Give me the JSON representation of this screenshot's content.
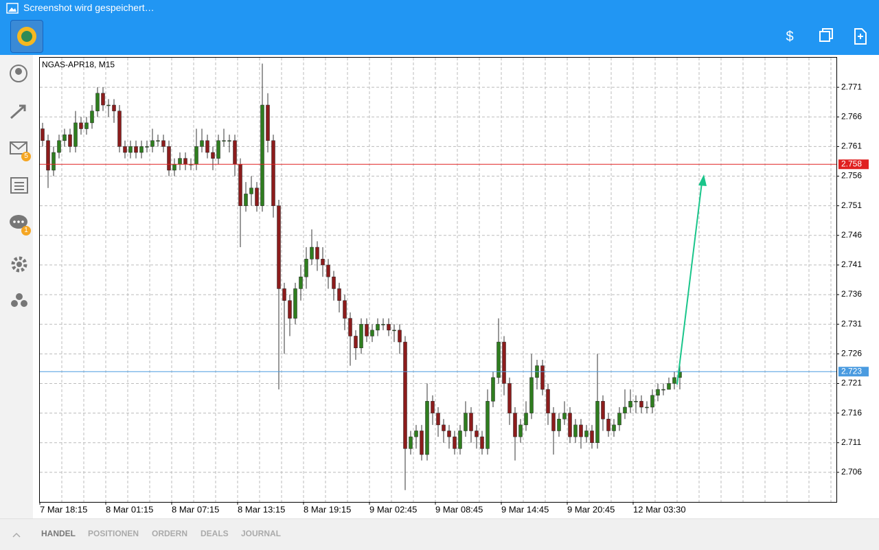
{
  "status_bar": {
    "text": "Screenshot wird gespeichert…"
  },
  "sidebar": {
    "badges": [
      "5",
      "1"
    ]
  },
  "chart_data": {
    "type": "candlestick",
    "title": "NGAS-APR18, M15",
    "categories": [
      "7 Mar 18:15",
      null,
      null,
      null,
      null,
      null,
      null,
      null,
      null,
      null,
      null,
      null,
      "8 Mar 01:15",
      null,
      null,
      null,
      null,
      null,
      null,
      null,
      null,
      null,
      null,
      null,
      "8 Mar 07:15",
      null,
      null,
      null,
      null,
      null,
      null,
      null,
      null,
      null,
      null,
      null,
      "8 Mar 13:15",
      null,
      null,
      null,
      null,
      null,
      null,
      null,
      null,
      null,
      null,
      null,
      "8 Mar 19:15",
      null,
      null,
      null,
      null,
      null,
      null,
      null,
      null,
      null,
      null,
      null,
      "9 Mar 02:45",
      null,
      null,
      null,
      null,
      null,
      null,
      null,
      null,
      null,
      null,
      null,
      "9 Mar 08:45",
      null,
      null,
      null,
      null,
      null,
      null,
      null,
      null,
      null,
      null,
      null,
      "9 Mar 14:45",
      null,
      null,
      null,
      null,
      null,
      null,
      null,
      null,
      null,
      null,
      null,
      "9 Mar 20:45",
      null,
      null,
      null,
      null,
      null,
      null,
      null,
      null,
      null,
      null,
      null,
      "12 Mar 03:30",
      null,
      null,
      null,
      null,
      null,
      null,
      null,
      null
    ],
    "open": [
      2.764,
      2.762,
      2.757,
      2.76,
      2.762,
      2.763,
      2.761,
      2.765,
      2.764,
      2.765,
      2.767,
      2.77,
      2.768,
      2.768,
      2.767,
      2.761,
      2.76,
      2.761,
      2.76,
      2.761,
      2.761,
      2.762,
      2.762,
      2.761,
      2.757,
      2.758,
      2.759,
      2.758,
      2.758,
      2.761,
      2.762,
      2.76,
      2.759,
      2.762,
      2.762,
      2.762,
      2.758,
      2.751,
      2.753,
      2.754,
      2.751,
      2.768,
      2.762,
      2.751,
      2.737,
      2.735,
      2.732,
      2.737,
      2.739,
      2.742,
      2.744,
      2.742,
      2.741,
      2.739,
      2.737,
      2.735,
      2.732,
      2.729,
      2.727,
      2.731,
      2.729,
      2.73,
      2.731,
      2.731,
      2.73,
      2.73,
      2.728,
      2.71,
      2.712,
      2.713,
      2.709,
      2.718,
      2.716,
      2.714,
      2.713,
      2.712,
      2.71,
      2.713,
      2.716,
      2.713,
      2.712,
      2.71,
      2.718,
      2.722,
      2.728,
      2.721,
      2.716,
      2.712,
      2.714,
      2.716,
      2.722,
      2.724,
      2.72,
      2.716,
      2.713,
      2.715,
      2.716,
      2.712,
      2.714,
      2.712,
      2.713,
      2.711,
      2.718,
      2.715,
      2.713,
      2.714,
      2.716,
      2.717,
      2.718,
      2.718,
      2.717,
      2.717,
      2.719,
      2.72,
      2.72,
      2.721,
      2.722
    ],
    "high": [
      2.765,
      2.763,
      2.761,
      2.763,
      2.764,
      2.764,
      2.767,
      2.766,
      2.766,
      2.768,
      2.771,
      2.771,
      2.769,
      2.769,
      2.768,
      2.762,
      2.762,
      2.762,
      2.762,
      2.762,
      2.764,
      2.763,
      2.763,
      2.762,
      2.759,
      2.76,
      2.76,
      2.759,
      2.764,
      2.764,
      2.763,
      2.761,
      2.763,
      2.764,
      2.763,
      2.763,
      2.759,
      2.755,
      2.756,
      2.755,
      2.775,
      2.77,
      2.763,
      2.752,
      2.738,
      2.736,
      2.738,
      2.741,
      2.744,
      2.747,
      2.745,
      2.744,
      2.742,
      2.74,
      2.738,
      2.736,
      2.733,
      2.73,
      2.732,
      2.732,
      2.731,
      2.732,
      2.732,
      2.732,
      2.731,
      2.731,
      2.729,
      2.713,
      2.714,
      2.714,
      2.721,
      2.719,
      2.717,
      2.715,
      2.714,
      2.713,
      2.714,
      2.718,
      2.717,
      2.714,
      2.713,
      2.72,
      2.723,
      2.732,
      2.729,
      2.722,
      2.717,
      2.715,
      2.718,
      2.726,
      2.725,
      2.725,
      2.721,
      2.717,
      2.716,
      2.718,
      2.717,
      2.715,
      2.715,
      2.714,
      2.714,
      2.726,
      2.719,
      2.716,
      2.715,
      2.717,
      2.72,
      2.72,
      2.719,
      2.719,
      2.718,
      2.72,
      2.721,
      2.721,
      2.722,
      2.723,
      2.724
    ],
    "low": [
      2.761,
      2.754,
      2.756,
      2.759,
      2.761,
      2.76,
      2.76,
      2.763,
      2.763,
      2.764,
      2.766,
      2.767,
      2.766,
      2.765,
      2.76,
      2.759,
      2.759,
      2.759,
      2.759,
      2.76,
      2.76,
      2.761,
      2.76,
      2.756,
      2.756,
      2.757,
      2.757,
      2.757,
      2.757,
      2.76,
      2.759,
      2.757,
      2.758,
      2.761,
      2.76,
      2.756,
      2.744,
      2.75,
      2.751,
      2.75,
      2.75,
      2.76,
      2.749,
      2.72,
      2.726,
      2.729,
      2.731,
      2.735,
      2.737,
      2.741,
      2.74,
      2.739,
      2.737,
      2.735,
      2.733,
      2.73,
      2.724,
      2.725,
      2.726,
      2.728,
      2.728,
      2.729,
      2.73,
      2.729,
      2.728,
      2.726,
      2.703,
      2.709,
      2.71,
      2.708,
      2.708,
      2.714,
      2.712,
      2.711,
      2.71,
      2.709,
      2.709,
      2.712,
      2.711,
      2.71,
      2.709,
      2.709,
      2.717,
      2.721,
      2.719,
      2.714,
      2.708,
      2.711,
      2.713,
      2.715,
      2.72,
      2.719,
      2.714,
      2.709,
      2.712,
      2.714,
      2.711,
      2.711,
      2.71,
      2.711,
      2.71,
      2.71,
      2.713,
      2.712,
      2.712,
      2.713,
      2.715,
      2.716,
      2.716,
      2.716,
      2.716,
      2.716,
      2.718,
      2.719,
      2.72,
      2.72,
      2.72
    ],
    "close": [
      2.762,
      2.757,
      2.76,
      2.762,
      2.763,
      2.761,
      2.765,
      2.764,
      2.765,
      2.767,
      2.77,
      2.768,
      2.768,
      2.767,
      2.761,
      2.76,
      2.761,
      2.76,
      2.761,
      2.761,
      2.762,
      2.762,
      2.761,
      2.757,
      2.758,
      2.759,
      2.758,
      2.758,
      2.761,
      2.762,
      2.76,
      2.759,
      2.762,
      2.762,
      2.762,
      2.758,
      2.751,
      2.753,
      2.754,
      2.751,
      2.768,
      2.762,
      2.751,
      2.737,
      2.735,
      2.732,
      2.737,
      2.739,
      2.742,
      2.744,
      2.742,
      2.741,
      2.739,
      2.737,
      2.735,
      2.732,
      2.729,
      2.727,
      2.731,
      2.729,
      2.73,
      2.731,
      2.731,
      2.73,
      2.73,
      2.728,
      2.71,
      2.712,
      2.713,
      2.709,
      2.718,
      2.716,
      2.714,
      2.713,
      2.712,
      2.71,
      2.713,
      2.716,
      2.713,
      2.712,
      2.71,
      2.718,
      2.722,
      2.728,
      2.721,
      2.716,
      2.712,
      2.714,
      2.716,
      2.722,
      2.724,
      2.72,
      2.716,
      2.713,
      2.715,
      2.716,
      2.712,
      2.714,
      2.712,
      2.713,
      2.711,
      2.718,
      2.715,
      2.713,
      2.714,
      2.716,
      2.717,
      2.718,
      2.718,
      2.717,
      2.717,
      2.719,
      2.72,
      2.72,
      2.721,
      2.722,
      2.723
    ],
    "up_color": "#2f7d1f",
    "down_color": "#8c1c1c",
    "ylim": [
      2.701,
      2.776
    ],
    "yticks": [
      2.706,
      2.711,
      2.716,
      2.721,
      2.726,
      2.731,
      2.736,
      2.741,
      2.746,
      2.751,
      2.756,
      2.761,
      2.766,
      2.771
    ],
    "grid": true,
    "price_lines": [
      {
        "value": 2.758,
        "color": "#e02020"
      },
      {
        "value": 2.723,
        "color": "#4a9be0"
      }
    ]
  },
  "tabs": [
    "HANDEL",
    "POSITIONEN",
    "ORDERN",
    "DEALS",
    "JOURNAL"
  ]
}
